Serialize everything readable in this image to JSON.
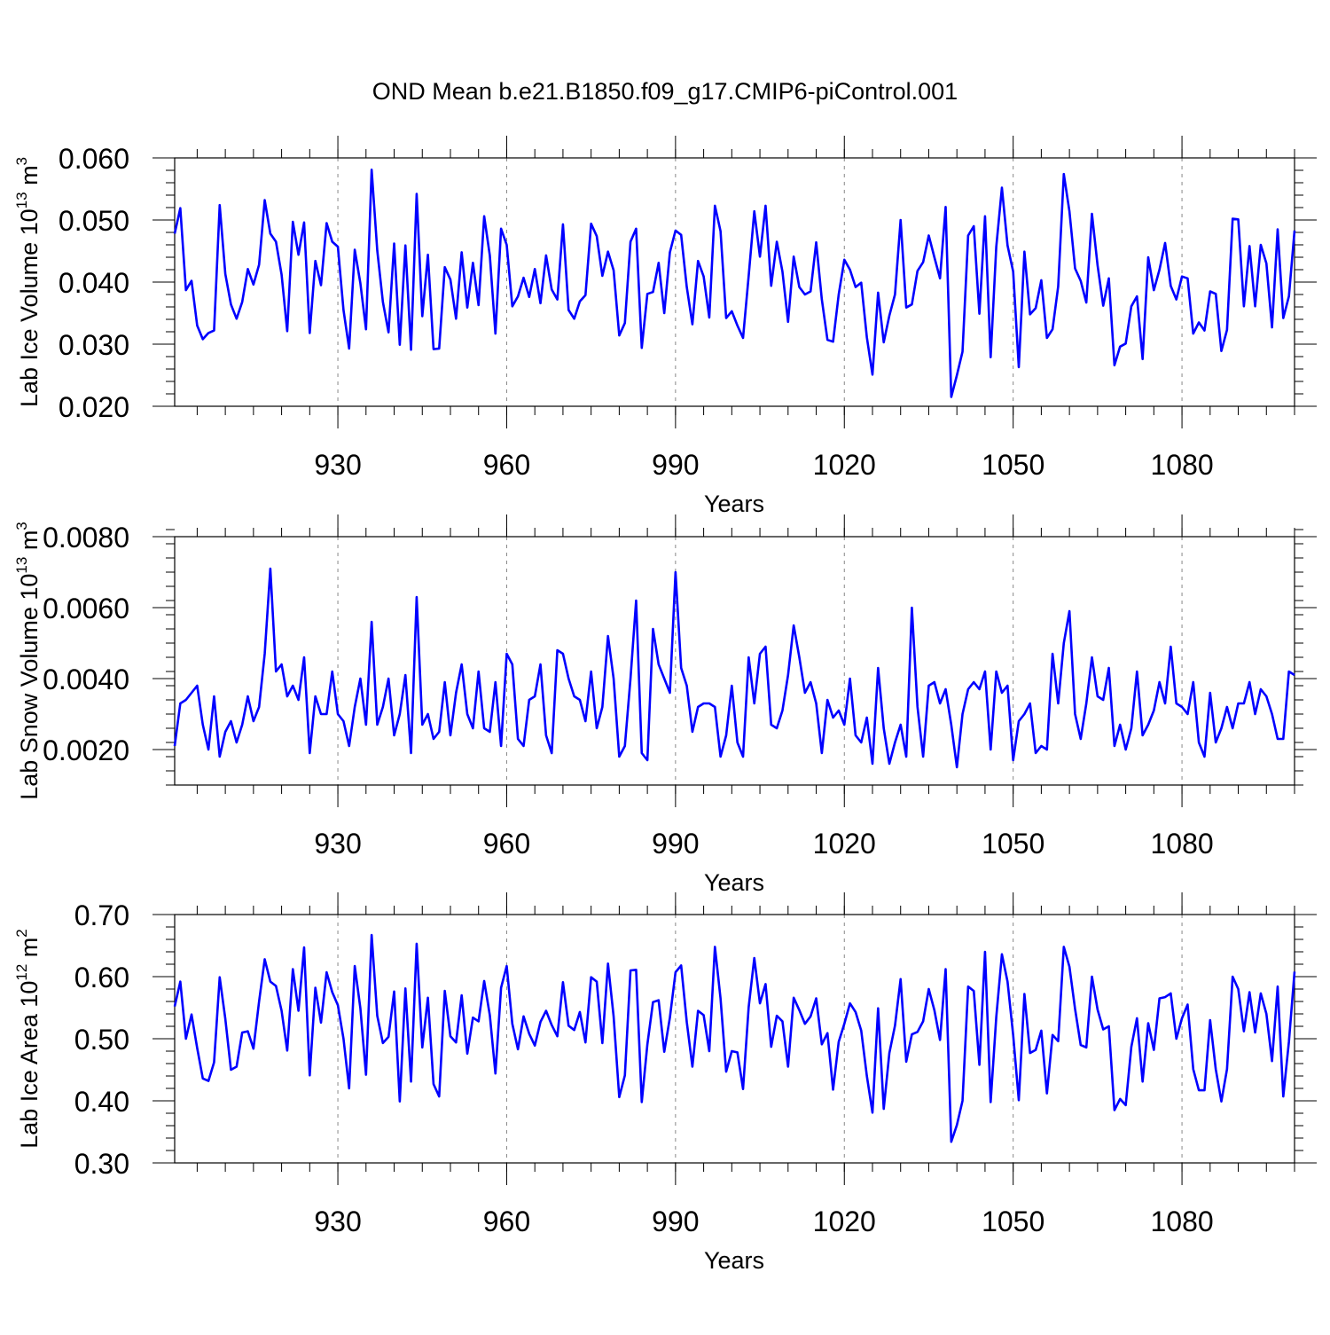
{
  "title": "OND Mean b.e21.B1850.f09_g17.CMIP6-piControl.001",
  "colors": {
    "series": "#0000ff",
    "axis": "#000000",
    "grid": "#888888"
  },
  "chart_data": [
    {
      "type": "line",
      "ylabel_parts": [
        "Lab Ice Volume 10",
        "13",
        " m",
        "3"
      ],
      "xlabel": "Years",
      "xlim": [
        901,
        1100
      ],
      "xticks": [
        930,
        960,
        990,
        1020,
        1050,
        1080
      ],
      "ylim": [
        0.02,
        0.06
      ],
      "yticks": [
        "0.020",
        "0.030",
        "0.040",
        "0.050",
        "0.060"
      ],
      "yminor_step": 0.002,
      "grid": "x-dashed",
      "x_start": 901,
      "values": [
        0.0478,
        0.0519,
        0.0387,
        0.0402,
        0.033,
        0.0308,
        0.0318,
        0.0322,
        0.0524,
        0.0413,
        0.0364,
        0.0341,
        0.0368,
        0.0421,
        0.0396,
        0.0428,
        0.0532,
        0.0478,
        0.0465,
        0.0412,
        0.0321,
        0.0497,
        0.0444,
        0.0496,
        0.0318,
        0.0434,
        0.0395,
        0.0495,
        0.0465,
        0.0457,
        0.0355,
        0.0293,
        0.0452,
        0.0398,
        0.0324,
        0.0581,
        0.0451,
        0.0368,
        0.0319,
        0.0462,
        0.0299,
        0.0459,
        0.0291,
        0.0542,
        0.0345,
        0.0444,
        0.0292,
        0.0293,
        0.0424,
        0.0404,
        0.0341,
        0.0448,
        0.0359,
        0.0431,
        0.0363,
        0.0506,
        0.0443,
        0.0317,
        0.0486,
        0.046,
        0.0361,
        0.0377,
        0.0407,
        0.0376,
        0.0421,
        0.0366,
        0.0443,
        0.0388,
        0.0372,
        0.0493,
        0.0355,
        0.0341,
        0.0369,
        0.0379,
        0.0494,
        0.0474,
        0.041,
        0.0449,
        0.0419,
        0.0314,
        0.0334,
        0.0465,
        0.0486,
        0.0294,
        0.0381,
        0.0384,
        0.0431,
        0.035,
        0.0448,
        0.0483,
        0.0476,
        0.0392,
        0.0332,
        0.0434,
        0.0409,
        0.0343,
        0.0523,
        0.0482,
        0.0342,
        0.0353,
        0.033,
        0.031,
        0.041,
        0.0514,
        0.0441,
        0.0523,
        0.0394,
        0.0465,
        0.0417,
        0.0336,
        0.0441,
        0.0392,
        0.038,
        0.0385,
        0.0464,
        0.0372,
        0.0307,
        0.0304,
        0.038,
        0.0436,
        0.042,
        0.0392,
        0.0399,
        0.0311,
        0.0251,
        0.0383,
        0.0303,
        0.0346,
        0.038,
        0.05,
        0.0359,
        0.0364,
        0.0418,
        0.0432,
        0.0475,
        0.044,
        0.0406,
        0.0521,
        0.0215,
        0.025,
        0.0288,
        0.0475,
        0.049,
        0.0349,
        0.0506,
        0.0279,
        0.0457,
        0.0552,
        0.0459,
        0.0417,
        0.0263,
        0.0449,
        0.0348,
        0.0358,
        0.0403,
        0.031,
        0.0324,
        0.0393,
        0.0574,
        0.0514,
        0.0422,
        0.0402,
        0.0367,
        0.051,
        0.0427,
        0.0362,
        0.0406,
        0.0266,
        0.0296,
        0.0301,
        0.0361,
        0.0377,
        0.0276,
        0.044,
        0.0387,
        0.042,
        0.0463,
        0.0394,
        0.0372,
        0.0409,
        0.0406,
        0.0317,
        0.0335,
        0.0322,
        0.0385,
        0.0381,
        0.0289,
        0.0323,
        0.0502,
        0.0501,
        0.0361,
        0.0458,
        0.0361,
        0.046,
        0.043,
        0.0327,
        0.0485,
        0.0342,
        0.0377,
        0.0483
      ]
    },
    {
      "type": "line",
      "ylabel_parts": [
        "Lab Snow Volume 10",
        "13",
        " m",
        "3"
      ],
      "xlabel": "Years",
      "xlim": [
        901,
        1100
      ],
      "xticks": [
        930,
        960,
        990,
        1020,
        1050,
        1080
      ],
      "ylim": [
        0.001,
        0.008
      ],
      "yticks": [
        "0.0020",
        "0.0040",
        "0.0060",
        "0.0080"
      ],
      "ytick_values": [
        0.002,
        0.004,
        0.006,
        0.008
      ],
      "yminor_step": 0.0004,
      "grid": "x-dashed",
      "x_start": 901,
      "values": [
        0.0021,
        0.0033,
        0.0034,
        0.0036,
        0.0038,
        0.0027,
        0.002,
        0.0035,
        0.0018,
        0.0025,
        0.0028,
        0.0022,
        0.0027,
        0.0035,
        0.0028,
        0.0032,
        0.0047,
        0.0071,
        0.0042,
        0.0044,
        0.0035,
        0.0038,
        0.0034,
        0.0046,
        0.0019,
        0.0035,
        0.003,
        0.003,
        0.0042,
        0.003,
        0.0028,
        0.0021,
        0.0032,
        0.004,
        0.0027,
        0.0056,
        0.0027,
        0.0032,
        0.004,
        0.0024,
        0.003,
        0.0041,
        0.0019,
        0.0063,
        0.0027,
        0.003,
        0.0023,
        0.0025,
        0.0039,
        0.0024,
        0.0036,
        0.0044,
        0.003,
        0.0026,
        0.0042,
        0.0026,
        0.0025,
        0.0039,
        0.0021,
        0.0047,
        0.0044,
        0.0023,
        0.0021,
        0.0034,
        0.0035,
        0.0044,
        0.0024,
        0.0019,
        0.0048,
        0.0047,
        0.004,
        0.0035,
        0.0034,
        0.0028,
        0.0042,
        0.0026,
        0.0032,
        0.0052,
        0.004,
        0.0018,
        0.0021,
        0.004,
        0.0062,
        0.0019,
        0.0017,
        0.0054,
        0.0044,
        0.004,
        0.0036,
        0.007,
        0.0043,
        0.0038,
        0.0025,
        0.0032,
        0.0033,
        0.0033,
        0.0032,
        0.0018,
        0.0024,
        0.0038,
        0.0022,
        0.0018,
        0.0046,
        0.0033,
        0.0047,
        0.0049,
        0.0027,
        0.0026,
        0.0031,
        0.0041,
        0.0055,
        0.0046,
        0.0036,
        0.0039,
        0.0033,
        0.0019,
        0.0034,
        0.0029,
        0.0031,
        0.0027,
        0.004,
        0.0024,
        0.0022,
        0.0029,
        0.0016,
        0.0043,
        0.0026,
        0.0016,
        0.0022,
        0.0027,
        0.0018,
        0.006,
        0.0032,
        0.0018,
        0.0038,
        0.0039,
        0.0033,
        0.0037,
        0.0027,
        0.0015,
        0.003,
        0.0037,
        0.0039,
        0.0037,
        0.0042,
        0.002,
        0.0042,
        0.0036,
        0.0038,
        0.0017,
        0.0028,
        0.003,
        0.0033,
        0.0019,
        0.0021,
        0.002,
        0.0047,
        0.0033,
        0.005,
        0.0059,
        0.003,
        0.0023,
        0.0033,
        0.0046,
        0.0035,
        0.0034,
        0.0043,
        0.0021,
        0.0027,
        0.002,
        0.0026,
        0.0042,
        0.0024,
        0.0027,
        0.0031,
        0.0039,
        0.0033,
        0.0049,
        0.0033,
        0.0032,
        0.003,
        0.0039,
        0.0022,
        0.0018,
        0.0036,
        0.0022,
        0.0026,
        0.0032,
        0.0026,
        0.0033,
        0.0033,
        0.0039,
        0.003,
        0.0037,
        0.0035,
        0.003,
        0.0023,
        0.0023,
        0.0042,
        0.0041
      ]
    },
    {
      "type": "line",
      "ylabel_parts": [
        "Lab Ice Area 10",
        "12",
        " m",
        "2"
      ],
      "xlabel": "Years",
      "xlim": [
        901,
        1100
      ],
      "xticks": [
        930,
        960,
        990,
        1020,
        1050,
        1080
      ],
      "ylim": [
        0.3,
        0.7
      ],
      "yticks": [
        "0.30",
        "0.40",
        "0.50",
        "0.60",
        "0.70"
      ],
      "yminor_step": 0.02,
      "grid": "x-dashed",
      "x_start": 901,
      "values": [
        0.552,
        0.592,
        0.5,
        0.539,
        0.485,
        0.436,
        0.432,
        0.462,
        0.599,
        0.532,
        0.45,
        0.455,
        0.51,
        0.512,
        0.484,
        0.56,
        0.628,
        0.592,
        0.585,
        0.545,
        0.481,
        0.612,
        0.545,
        0.647,
        0.441,
        0.582,
        0.526,
        0.607,
        0.575,
        0.554,
        0.5,
        0.42,
        0.617,
        0.549,
        0.442,
        0.667,
        0.537,
        0.493,
        0.503,
        0.576,
        0.399,
        0.581,
        0.431,
        0.653,
        0.486,
        0.566,
        0.427,
        0.407,
        0.577,
        0.504,
        0.494,
        0.57,
        0.476,
        0.534,
        0.528,
        0.593,
        0.538,
        0.444,
        0.582,
        0.617,
        0.524,
        0.483,
        0.536,
        0.508,
        0.489,
        0.527,
        0.545,
        0.522,
        0.504,
        0.591,
        0.521,
        0.514,
        0.543,
        0.494,
        0.599,
        0.592,
        0.493,
        0.621,
        0.536,
        0.406,
        0.441,
        0.61,
        0.611,
        0.398,
        0.491,
        0.559,
        0.562,
        0.479,
        0.534,
        0.607,
        0.618,
        0.527,
        0.455,
        0.545,
        0.538,
        0.48,
        0.648,
        0.565,
        0.447,
        0.48,
        0.478,
        0.419,
        0.551,
        0.63,
        0.557,
        0.588,
        0.487,
        0.537,
        0.528,
        0.455,
        0.566,
        0.546,
        0.524,
        0.536,
        0.565,
        0.491,
        0.509,
        0.418,
        0.495,
        0.524,
        0.557,
        0.543,
        0.513,
        0.44,
        0.381,
        0.549,
        0.387,
        0.477,
        0.521,
        0.596,
        0.463,
        0.507,
        0.511,
        0.528,
        0.58,
        0.546,
        0.498,
        0.612,
        0.334,
        0.361,
        0.4,
        0.584,
        0.577,
        0.458,
        0.64,
        0.398,
        0.535,
        0.636,
        0.592,
        0.506,
        0.401,
        0.572,
        0.477,
        0.482,
        0.513,
        0.412,
        0.506,
        0.496,
        0.648,
        0.616,
        0.548,
        0.49,
        0.486,
        0.6,
        0.547,
        0.515,
        0.52,
        0.385,
        0.403,
        0.393,
        0.487,
        0.533,
        0.431,
        0.525,
        0.482,
        0.565,
        0.567,
        0.573,
        0.5,
        0.533,
        0.555,
        0.451,
        0.417,
        0.417,
        0.53,
        0.451,
        0.399,
        0.451,
        0.6,
        0.58,
        0.512,
        0.575,
        0.51,
        0.573,
        0.54,
        0.464,
        0.584,
        0.407,
        0.495,
        0.608
      ]
    }
  ]
}
